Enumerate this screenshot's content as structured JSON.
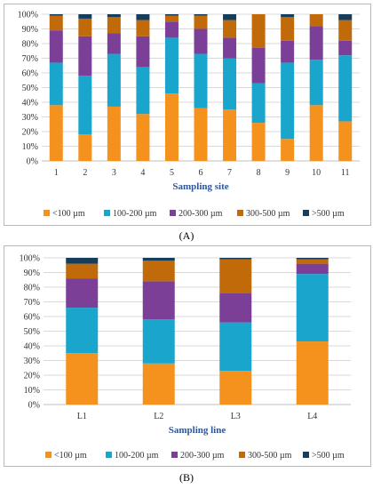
{
  "colors": {
    "<100": "#f5921e",
    "100-200": "#1aa6cc",
    "200-300": "#7b3f98",
    "300-500": "#c06a0a",
    ">500": "#173d5c"
  },
  "panel_labels": {
    "a": "(A)",
    "b": "(B)"
  },
  "chart_data": [
    {
      "type": "bar",
      "stacked": true,
      "xlabel": "Sampling site",
      "ylabel": "",
      "ylim": [
        0,
        100
      ],
      "y_ticks": [
        "0%",
        "10%",
        "20%",
        "30%",
        "40%",
        "50%",
        "60%",
        "70%",
        "80%",
        "90%",
        "100%"
      ],
      "legend_position": "bottom",
      "categories": [
        "1",
        "2",
        "3",
        "4",
        "5",
        "6",
        "7",
        "8",
        "9",
        "10",
        "11"
      ],
      "series": [
        {
          "name": "<100 µm",
          "key": "<100",
          "values": [
            38,
            18,
            37,
            32,
            46,
            36,
            35,
            26,
            15,
            38,
            27
          ]
        },
        {
          "name": "100-200 µm",
          "key": "100-200",
          "values": [
            29,
            40,
            36,
            32,
            38,
            37,
            35,
            27,
            52,
            31,
            45
          ]
        },
        {
          "name": "200-300 µm",
          "key": "200-300",
          "values": [
            22,
            27,
            14,
            21,
            11,
            17,
            14,
            24,
            15,
            23,
            10
          ]
        },
        {
          "name": "300-500 µm",
          "key": "300-500",
          "values": [
            10,
            12,
            11,
            11,
            4,
            9,
            12,
            23,
            16,
            8,
            14
          ]
        },
        {
          "name": ">500 µm",
          "key": ">500",
          "values": [
            1,
            3,
            2,
            4,
            1,
            1,
            4,
            0,
            2,
            0,
            4
          ]
        }
      ]
    },
    {
      "type": "bar",
      "stacked": true,
      "xlabel": "Sampling line",
      "ylabel": "",
      "ylim": [
        0,
        100
      ],
      "y_ticks": [
        "0%",
        "10%",
        "20%",
        "30%",
        "40%",
        "50%",
        "60%",
        "70%",
        "80%",
        "90%",
        "100%"
      ],
      "legend_position": "bottom",
      "categories": [
        "L1",
        "L2",
        "L3",
        "L4"
      ],
      "series": [
        {
          "name": "<100 µm",
          "key": "<100",
          "values": [
            35,
            28,
            23,
            43
          ]
        },
        {
          "name": "100-200 µm",
          "key": "100-200",
          "values": [
            31,
            30,
            33,
            46
          ]
        },
        {
          "name": "200-300 µm",
          "key": "200-300",
          "values": [
            20,
            26,
            20,
            7
          ]
        },
        {
          "name": "300-500 µm",
          "key": "300-500",
          "values": [
            10,
            14,
            23,
            3
          ]
        },
        {
          "name": ">500 µm",
          "key": ">500",
          "values": [
            4,
            2,
            1,
            1
          ]
        }
      ]
    }
  ]
}
